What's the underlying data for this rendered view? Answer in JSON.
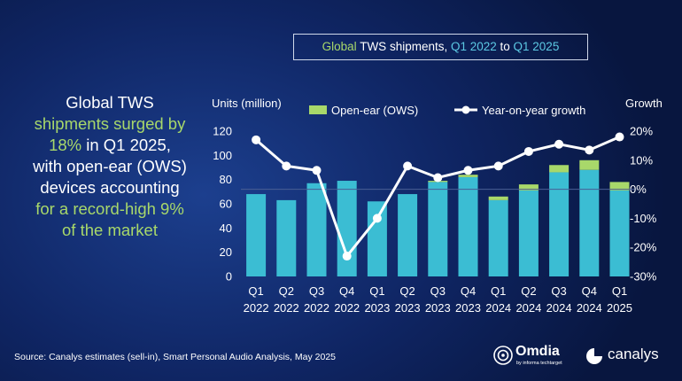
{
  "headline": {
    "line1": "Global TWS",
    "line2": "shipments surged by",
    "line3a": "18%",
    "line3b": " in Q1 2025,",
    "line4": "with open-ear (OWS)",
    "line5": "devices accounting",
    "line6": "for a record-high 9%",
    "line7": "of the market"
  },
  "title_box": {
    "part1": "Global",
    "part2": " TWS shipments, ",
    "part3": "Q1 2022",
    "part4": " to ",
    "part5": "Q1 2025"
  },
  "source": "Source: Canalys estimates (sell-in), Smart Personal Audio Analysis, May 2025",
  "logos": {
    "omdia": "Omdia",
    "omdia_sub": "by informa techtarget",
    "canalys": "canalys"
  },
  "colors": {
    "bar_tws": "#3bbdd3",
    "bar_ows": "#a8d86a",
    "growth_line": "#ffffff",
    "grid": "#4a5f94",
    "highlight_green": "#a8d86a",
    "highlight_cyan": "#5cc9e3"
  },
  "chart_data": {
    "type": "bar+line",
    "left_axis_label": "Units (million)",
    "right_axis_label": "Growth",
    "categories": [
      [
        "Q1",
        "2022"
      ],
      [
        "Q2",
        "2022"
      ],
      [
        "Q3",
        "2022"
      ],
      [
        "Q4",
        "2022"
      ],
      [
        "Q1",
        "2023"
      ],
      [
        "Q2",
        "2023"
      ],
      [
        "Q3",
        "2023"
      ],
      [
        "Q4",
        "2023"
      ],
      [
        "Q1",
        "2024"
      ],
      [
        "Q2",
        "2024"
      ],
      [
        "Q3",
        "2024"
      ],
      [
        "Q4",
        "2024"
      ],
      [
        "Q1",
        "2025"
      ]
    ],
    "series": [
      {
        "name": "",
        "kind": "bar",
        "values": [
          68,
          63,
          77,
          79,
          62,
          68,
          78,
          82,
          63,
          71,
          86,
          88,
          71
        ]
      },
      {
        "name": "Open-ear (OWS)",
        "kind": "bar-stacked",
        "values": [
          0,
          0,
          0,
          0,
          0,
          0,
          1,
          2,
          3,
          5,
          6,
          8,
          7
        ]
      },
      {
        "name": "Year-on-year growth",
        "kind": "line",
        "axis": "right",
        "values": [
          17,
          8,
          6.5,
          -23,
          -10,
          8,
          4,
          6.5,
          8,
          13,
          15.5,
          13.5,
          18
        ]
      }
    ],
    "left_ticks": [
      "0",
      "20",
      "40",
      "60",
      "80",
      "100",
      "120"
    ],
    "right_ticks": [
      "20%",
      "10%",
      "0%",
      "-10%",
      "-20%",
      "-30%"
    ],
    "ylim_left": [
      0,
      120
    ],
    "ylim_right": [
      -30,
      20
    ],
    "grid": false,
    "zero_growth_line": true,
    "legend_position": "top"
  }
}
